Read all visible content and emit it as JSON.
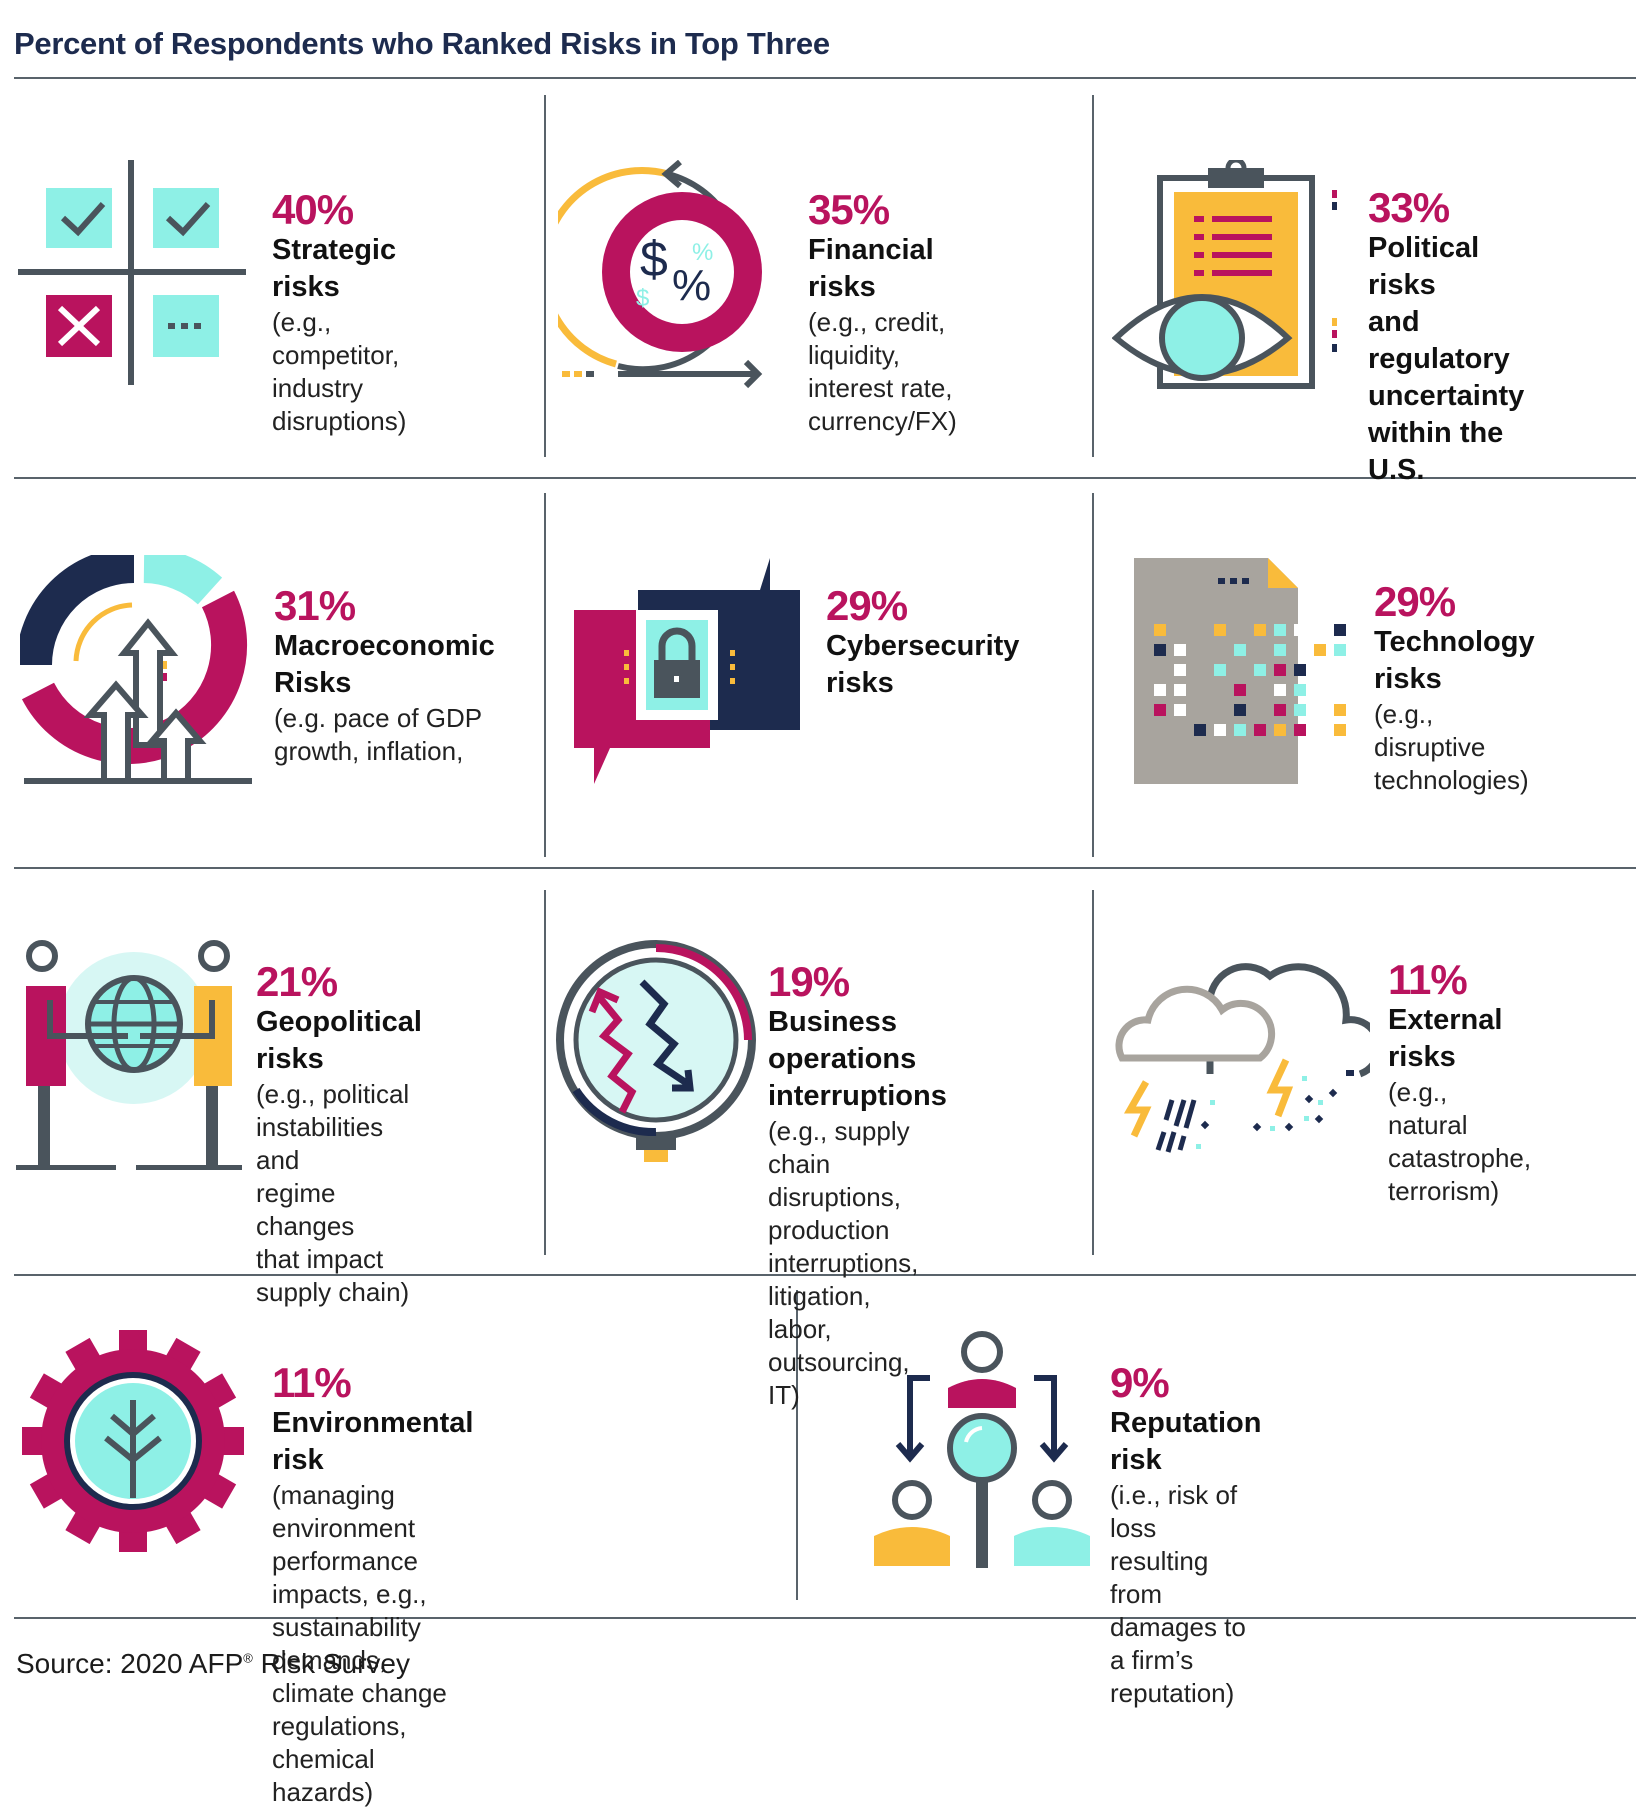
{
  "title": "Percent of Respondents who Ranked Risks in Top Three",
  "colors": {
    "magenta": "#b9135e",
    "navy": "#1d2b4e",
    "teal": "#8ef0e6",
    "yellow": "#f9bb3b",
    "gray": "#4a545c"
  },
  "risks": [
    {
      "pct": "40%",
      "name": "Strategic risks",
      "desc": "(e.g., competitor,\nindustry\ndisruptions)",
      "icon": "strategy-grid-icon"
    },
    {
      "pct": "35%",
      "name": "Financial risks",
      "desc": "(e.g., credit,\n liquidity,\ninterest rate,\ncurrency/FX)",
      "icon": "finance-cycle-icon"
    },
    {
      "pct": "33%",
      "name": "Political risks\nand regulatory\nuncertainty\nwithin the U.S.",
      "desc": "",
      "icon": "clipboard-eye-icon"
    },
    {
      "pct": "31%",
      "name": "Macroeconomic\nRisks",
      "desc": "(e.g. pace of GDP\ngrowth, inflation,",
      "icon": "growth-arrows-icon"
    },
    {
      "pct": "29%",
      "name": "Cybersecurity\nrisks",
      "desc": "",
      "icon": "padlock-chat-icon"
    },
    {
      "pct": "29%",
      "name": "Technology risks",
      "desc": "(e.g., disruptive\ntechnologies)",
      "icon": "pixel-document-icon"
    },
    {
      "pct": "21%",
      "name": "Geopolitical risks",
      "desc": "(e.g., political\ninstabilities and\nregime changes\nthat impact\nsupply chain)",
      "icon": "globe-people-icon"
    },
    {
      "pct": "19%",
      "name": "Business operations\ninterruptions",
      "desc": "(e.g., supply chain\ndisruptions, production\ninterruptions, litigation,\nlabor, outsourcing, IT)",
      "icon": "magnifier-zigzag-icon"
    },
    {
      "pct": "11%",
      "name": "External risks",
      "desc": "(e.g., natural\ncatastrophe,\nterrorism)",
      "icon": "storm-clouds-icon"
    },
    {
      "pct": "11%",
      "name": "Environmental risk",
      "desc": "(managing environment performance\nimpacts, e.g., sustainability demands,\nclimate change regulations,\nchemical hazards)",
      "icon": "gear-tree-icon"
    },
    {
      "pct": "9%",
      "name": "Reputation risk",
      "desc": "(i.e., risk of loss resulting from\ndamages to a firm’s reputation)",
      "icon": "people-magnifier-icon"
    }
  ],
  "source": {
    "prefix": "Source: 2020 AFP",
    "mark": "®",
    "suffix": " Risk Survey"
  }
}
